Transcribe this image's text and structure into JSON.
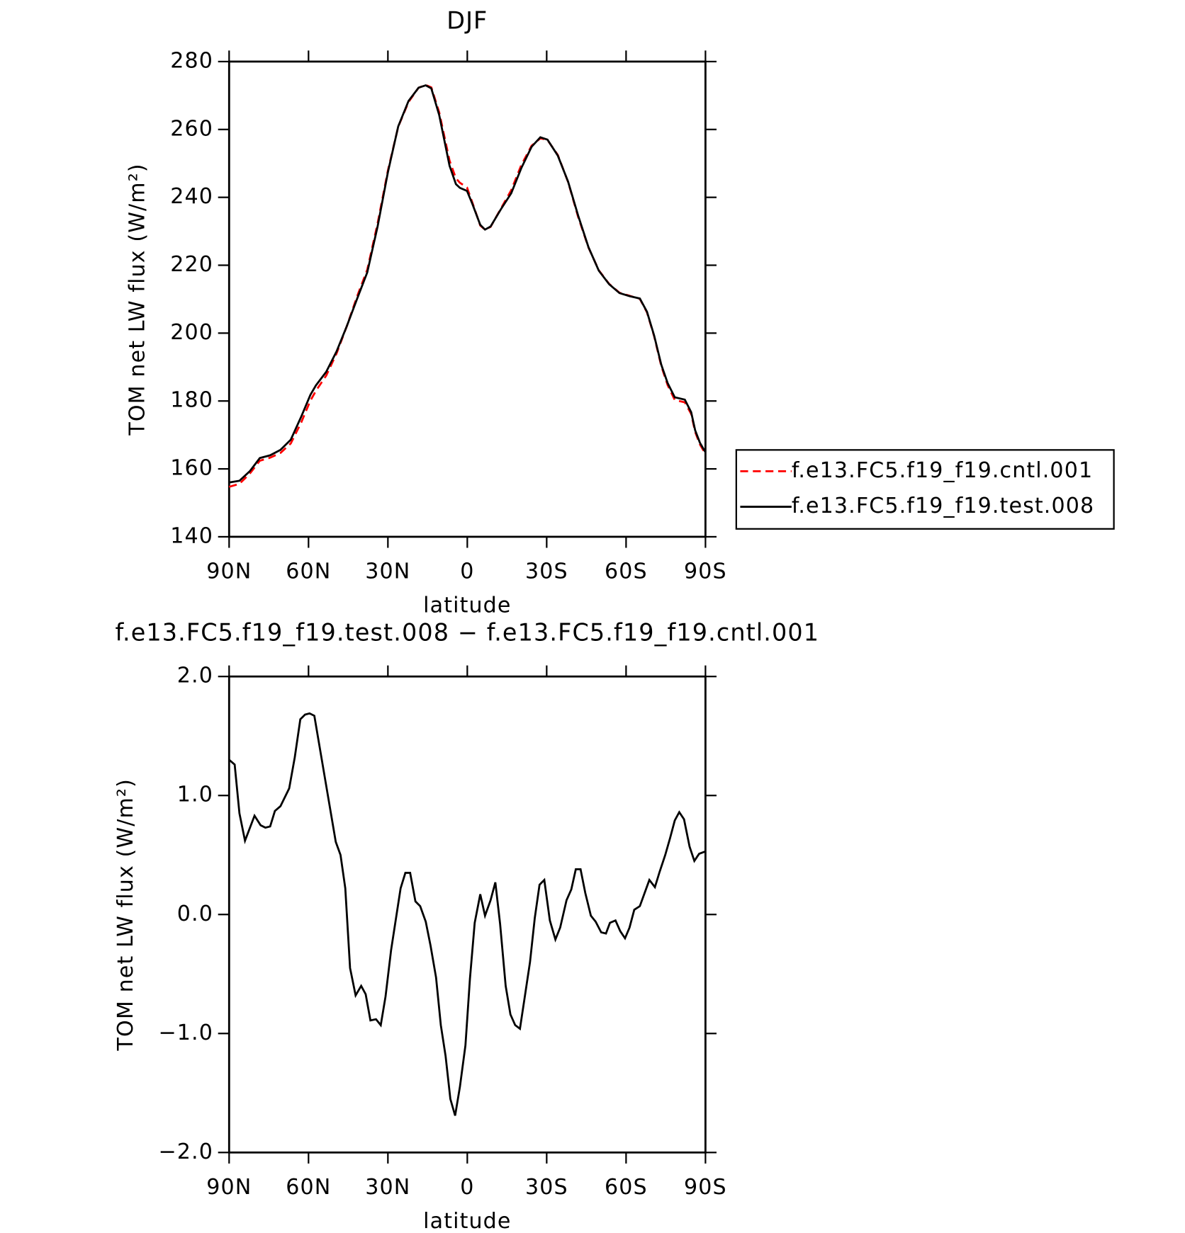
{
  "chart_data": [
    {
      "type": "line",
      "title": "DJF",
      "xlabel": "latitude",
      "ylabel": "TOM net LW flux (W/m²)",
      "x": [
        90,
        86.1,
        82.2,
        78.4,
        74.5,
        70.6,
        66.7,
        62.8,
        59.3,
        57.2,
        53.3,
        49.4,
        45.5,
        41.6,
        37.8,
        33.9,
        30.0,
        26.1,
        22.2,
        18.4,
        15.7,
        13.6,
        10.6,
        6.7,
        4.3,
        2.8,
        0.1,
        -1.9,
        -4.9,
        -6.7,
        -8.8,
        -12.7,
        -16.6,
        -20.4,
        -24.3,
        -27.6,
        -30.3,
        -34.2,
        -38.1,
        -41.9,
        -45.8,
        -49.7,
        -53.6,
        -57.5,
        -61.3,
        -65.2,
        -67.9,
        -70.6,
        -73.3,
        -75.7,
        -78.4,
        -82.2,
        -84.6,
        -86.1,
        -87.9,
        -90
      ],
      "series": [
        {
          "name": "f.e13.FC5.f19_f19.cntl.001",
          "color": "#ff0000",
          "linestyle": "dashed",
          "values": [
            154.7,
            155.6,
            158.6,
            162.4,
            163.3,
            164.7,
            167.5,
            173.6,
            180.1,
            183.0,
            187.5,
            194.0,
            202.1,
            210.9,
            218.7,
            232.3,
            247.9,
            260.8,
            268.1,
            272.3,
            273.1,
            272.4,
            265.0,
            250.8,
            245.6,
            244.3,
            242.9,
            238.5,
            231.7,
            230.5,
            231.3,
            236.7,
            242.1,
            249.5,
            255.2,
            257.4,
            256.9,
            252.5,
            244.5,
            234.2,
            225.2,
            218.5,
            214.5,
            211.9,
            211.0,
            210.1,
            206.1,
            199.1,
            190.3,
            184.7,
            180.3,
            179.6,
            176.2,
            170.9,
            167.2,
            164.4
          ]
        },
        {
          "name": "f.e13.FC5.f19_f19.test.008",
          "color": "#000000",
          "linestyle": "solid",
          "values": [
            156.0,
            156.5,
            159.3,
            163.2,
            164.0,
            165.6,
            168.6,
            175.3,
            181.8,
            184.6,
            188.6,
            194.6,
            202.1,
            210.2,
            217.9,
            231.4,
            247.4,
            260.9,
            268.4,
            272.3,
            273.0,
            272.1,
            264.2,
            249.3,
            243.9,
            242.8,
            241.9,
            238.1,
            231.9,
            230.5,
            231.4,
            236.5,
            241.2,
            248.6,
            254.9,
            257.7,
            257.0,
            252.3,
            244.6,
            234.6,
            225.3,
            218.4,
            214.4,
            211.8,
            210.9,
            210.2,
            206.3,
            199.3,
            190.7,
            185.3,
            181.1,
            180.4,
            176.7,
            171.4,
            167.7,
            164.9
          ]
        }
      ],
      "xlim": [
        90,
        -90
      ],
      "xticks": [
        {
          "value": 90,
          "label": "90N"
        },
        {
          "value": 60,
          "label": "60N"
        },
        {
          "value": 30,
          "label": "30N"
        },
        0,
        {
          "value": -30,
          "label": "30S"
        },
        {
          "value": -60,
          "label": "60S"
        },
        {
          "value": -90,
          "label": "90S"
        }
      ],
      "ylim": [
        140,
        280
      ],
      "yticks": [
        140,
        160,
        180,
        200,
        220,
        240,
        260,
        280
      ],
      "legend": "right"
    },
    {
      "type": "line",
      "title": "f.e13.FC5.f19_f19.test.008 − f.e13.FC5.f19_f19.cntl.001",
      "xlabel": "latitude",
      "ylabel": "TOM net LW flux (W/m²)",
      "x": [
        90,
        87.9,
        86.1,
        84.0,
        80.4,
        78.1,
        76.3,
        74.5,
        72.7,
        70.6,
        67.3,
        65.2,
        63.1,
        61.3,
        59.6,
        57.8,
        53.6,
        49.7,
        47.9,
        46.1,
        44.3,
        42.2,
        40.1,
        38.4,
        36.6,
        34.5,
        32.7,
        30.9,
        28.8,
        25.2,
        23.4,
        21.6,
        19.6,
        17.8,
        15.7,
        13.9,
        11.8,
        10.0,
        8.2,
        6.4,
        4.6,
        2.8,
        0.7,
        -1.0,
        -2.8,
        -4.9,
        -6.7,
        -8.8,
        -10.6,
        -12.4,
        -14.5,
        -16.3,
        -18.1,
        -19.9,
        -21.6,
        -23.7,
        -25.5,
        -27.3,
        -29.1,
        -31.2,
        -33.3,
        -35.1,
        -37.5,
        -39.3,
        -41.0,
        -42.8,
        -44.6,
        -46.7,
        -48.5,
        -50.6,
        -52.4,
        -53.9,
        -56.0,
        -57.8,
        -59.6,
        -61.3,
        -63.1,
        -65.2,
        -67.0,
        -68.8,
        -70.9,
        -72.7,
        -74.8,
        -76.6,
        -78.4,
        -80.1,
        -81.9,
        -84.0,
        -85.8,
        -87.6,
        -90
      ],
      "series": [
        {
          "color": "#000000",
          "linestyle": "solid",
          "values": [
            1.3,
            1.26,
            0.85,
            0.62,
            0.83,
            0.75,
            0.73,
            0.74,
            0.87,
            0.91,
            1.06,
            1.32,
            1.64,
            1.68,
            1.69,
            1.67,
            1.12,
            0.61,
            0.5,
            0.22,
            -0.45,
            -0.68,
            -0.6,
            -0.67,
            -0.89,
            -0.88,
            -0.93,
            -0.69,
            -0.3,
            0.22,
            0.35,
            0.35,
            0.11,
            0.07,
            -0.06,
            -0.26,
            -0.53,
            -0.93,
            -1.19,
            -1.55,
            -1.69,
            -1.45,
            -1.1,
            -0.54,
            -0.07,
            0.17,
            -0.01,
            0.12,
            0.27,
            -0.08,
            -0.6,
            -0.84,
            -0.93,
            -0.96,
            -0.71,
            -0.4,
            -0.03,
            0.25,
            0.29,
            -0.05,
            -0.21,
            -0.11,
            0.12,
            0.21,
            0.38,
            0.38,
            0.18,
            -0.01,
            -0.06,
            -0.15,
            -0.16,
            -0.07,
            -0.05,
            -0.14,
            -0.2,
            -0.11,
            0.04,
            0.07,
            0.18,
            0.29,
            0.23,
            0.36,
            0.5,
            0.64,
            0.79,
            0.86,
            0.8,
            0.57,
            0.45,
            0.51,
            0.53
          ]
        }
      ],
      "xlim": [
        90,
        -90
      ],
      "xticks": [
        {
          "value": 90,
          "label": "90N"
        },
        {
          "value": 60,
          "label": "60N"
        },
        {
          "value": 30,
          "label": "30N"
        },
        0,
        {
          "value": -30,
          "label": "30S"
        },
        {
          "value": -60,
          "label": "60S"
        },
        {
          "value": -90,
          "label": "90S"
        }
      ],
      "ylim": [
        -2,
        2
      ],
      "yticks": [
        {
          "value": -2,
          "label": "−2.0"
        },
        {
          "value": -1,
          "label": "−1.0"
        },
        {
          "value": 0,
          "label": "0.0"
        },
        {
          "value": 1,
          "label": "1.0"
        },
        {
          "value": 2,
          "label": "2.0"
        }
      ]
    }
  ]
}
